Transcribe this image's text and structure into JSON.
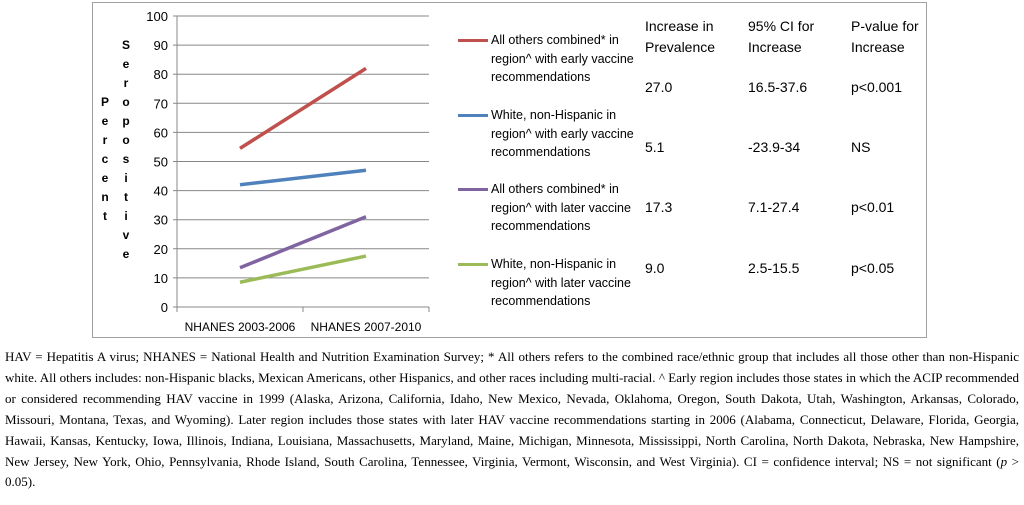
{
  "chart_data": {
    "type": "line",
    "ylabel": "Percent Seropositive",
    "ylabel_parts": [
      "Percent",
      "Seropositive"
    ],
    "ylim": [
      0,
      100
    ],
    "yticks": [
      0,
      10,
      20,
      30,
      40,
      50,
      60,
      70,
      80,
      90,
      100
    ],
    "grid": true,
    "legend": "right",
    "categories": [
      "NHANES 2003-2006",
      "NHANES 2007-2010"
    ],
    "series": [
      {
        "name": "All others combined* in region^ with early vaccine recommendations",
        "color": "#c0504d",
        "values": [
          54.5,
          82
        ]
      },
      {
        "name": "White, non-Hispanic in region^  with early vaccine recommendations",
        "color": "#4f81bd",
        "values": [
          42,
          47
        ]
      },
      {
        "name": "All others combined* in region^ with later vaccine recommendations",
        "color": "#8064a2",
        "values": [
          13.5,
          31
        ]
      },
      {
        "name": "White, non-Hispanic in region^ with later vaccine recommendations",
        "color": "#9bbb59",
        "values": [
          8.5,
          17.5
        ]
      }
    ]
  },
  "table": {
    "headers": [
      "Increase in Prevalence",
      "95% CI for Increase",
      "P-value for Increase"
    ],
    "rows": [
      [
        "27.0",
        "16.5-37.6",
        "p<0.001"
      ],
      [
        "5.1",
        "-23.9-34",
        "NS"
      ],
      [
        "17.3",
        "7.1-27.4",
        "p<0.01"
      ],
      [
        "9.0",
        "2.5-15.5",
        "p<0.05"
      ]
    ]
  },
  "caption": {
    "main": "HAV = Hepatitis A virus; NHANES = National Health and Nutrition Examination Survey; * All others refers to the combined race/ethnic group that includes all those other than non-Hispanic white. All others includes: non-Hispanic blacks, Mexican Americans, other Hispanics, and other races including multi-racial. ^ Early region includes those states in which the ACIP recommended or considered recommending HAV vaccine in 1999 (Alaska, Arizona, California, Idaho, New Mexico, Nevada, Oklahoma, Oregon, South Dakota, Utah, Washington, Arkansas, Colorado, Missouri, Montana, Texas, and Wyoming). Later region includes those states with later HAV vaccine recommendations starting in 2006 (Alabama, Connecticut, Delaware, Florida, Georgia, Hawaii, Kansas, Kentucky, Iowa, Illinois, Indiana, Louisiana, Massachusetts, Maryland, Maine, Michigan, Minnesota, Mississippi, North Carolina, North Dakota, Nebraska, New Hampshire, New Jersey, New York, Ohio, Pennsylvania, Rhode Island, South Carolina, Tennessee, Virginia, Vermont, Wisconsin, and West Virginia). CI = confidence interval; NS = not significant (",
    "p": "p",
    "end": " > 0.05)."
  }
}
